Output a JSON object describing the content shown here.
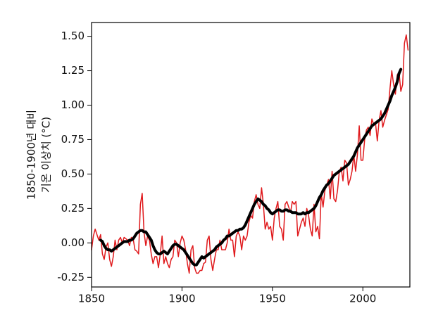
{
  "chart_data": {
    "type": "line",
    "ylabel": [
      "1850-1900년 대비",
      "기온 이상치 (°C)"
    ],
    "x": [
      1850,
      1851,
      1852,
      1853,
      1854,
      1855,
      1856,
      1857,
      1858,
      1859,
      1860,
      1861,
      1862,
      1863,
      1864,
      1865,
      1866,
      1867,
      1868,
      1869,
      1870,
      1871,
      1872,
      1873,
      1874,
      1875,
      1876,
      1877,
      1878,
      1879,
      1880,
      1881,
      1882,
      1883,
      1884,
      1885,
      1886,
      1887,
      1888,
      1889,
      1890,
      1891,
      1892,
      1893,
      1894,
      1895,
      1896,
      1897,
      1898,
      1899,
      1900,
      1901,
      1902,
      1903,
      1904,
      1905,
      1906,
      1907,
      1908,
      1909,
      1910,
      1911,
      1912,
      1913,
      1914,
      1915,
      1916,
      1917,
      1918,
      1919,
      1920,
      1921,
      1922,
      1923,
      1924,
      1925,
      1926,
      1927,
      1928,
      1929,
      1930,
      1931,
      1932,
      1933,
      1934,
      1935,
      1936,
      1937,
      1938,
      1939,
      1940,
      1941,
      1942,
      1943,
      1944,
      1945,
      1946,
      1947,
      1948,
      1949,
      1950,
      1951,
      1952,
      1953,
      1954,
      1955,
      1956,
      1957,
      1958,
      1959,
      1960,
      1961,
      1962,
      1963,
      1964,
      1965,
      1966,
      1967,
      1968,
      1969,
      1970,
      1971,
      1972,
      1973,
      1974,
      1975,
      1976,
      1977,
      1978,
      1979,
      1980,
      1981,
      1982,
      1983,
      1984,
      1985,
      1986,
      1987,
      1988,
      1989,
      1990,
      1991,
      1992,
      1993,
      1994,
      1995,
      1996,
      1997,
      1998,
      1999,
      2000,
      2001,
      2002,
      2003,
      2004,
      2005,
      2006,
      2007,
      2008,
      2009,
      2010,
      2011,
      2012,
      2013,
      2014,
      2015,
      2016,
      2017,
      2018,
      2019,
      2020,
      2021,
      2022,
      2023,
      2024,
      2025
    ],
    "series": [
      {
        "color": "#e0191c",
        "width": 1.5,
        "values": [
          -0.05,
          0.05,
          0.1,
          0.06,
          0.02,
          0.06,
          -0.08,
          -0.12,
          -0.03,
          0.0,
          -0.12,
          -0.17,
          -0.1,
          0.02,
          -0.05,
          0.02,
          0.04,
          0.0,
          0.04,
          0.03,
          0.02,
          -0.02,
          0.04,
          0.03,
          -0.05,
          -0.06,
          -0.08,
          0.28,
          0.36,
          0.08,
          -0.02,
          0.05,
          0.02,
          -0.08,
          -0.15,
          -0.1,
          -0.1,
          -0.18,
          -0.08,
          0.05,
          -0.15,
          -0.1,
          -0.15,
          -0.18,
          -0.12,
          -0.1,
          0.02,
          0.0,
          -0.1,
          0.0,
          0.05,
          0.02,
          -0.05,
          -0.15,
          -0.22,
          -0.05,
          -0.02,
          -0.18,
          -0.22,
          -0.22,
          -0.2,
          -0.2,
          -0.15,
          -0.14,
          0.02,
          0.05,
          -0.12,
          -0.2,
          -0.12,
          -0.05,
          -0.05,
          0.02,
          -0.05,
          -0.05,
          -0.05,
          0.0,
          0.1,
          0.02,
          0.02,
          -0.1,
          0.05,
          0.08,
          0.05,
          -0.05,
          0.05,
          0.02,
          0.05,
          0.15,
          0.2,
          0.18,
          0.3,
          0.35,
          0.28,
          0.25,
          0.4,
          0.28,
          0.1,
          0.15,
          0.1,
          0.12,
          0.02,
          0.18,
          0.25,
          0.3,
          0.12,
          0.1,
          0.02,
          0.28,
          0.3,
          0.26,
          0.22,
          0.3,
          0.28,
          0.3,
          0.05,
          0.1,
          0.15,
          0.18,
          0.12,
          0.25,
          0.2,
          0.1,
          0.05,
          0.28,
          0.08,
          0.12,
          0.03,
          0.36,
          0.26,
          0.38,
          0.42,
          0.46,
          0.32,
          0.52,
          0.32,
          0.3,
          0.38,
          0.52,
          0.55,
          0.45,
          0.6,
          0.58,
          0.42,
          0.46,
          0.52,
          0.64,
          0.52,
          0.64,
          0.85,
          0.6,
          0.6,
          0.75,
          0.82,
          0.84,
          0.78,
          0.9,
          0.86,
          0.87,
          0.74,
          0.89,
          0.96,
          0.84,
          0.89,
          0.93,
          0.97,
          1.12,
          1.25,
          1.15,
          1.08,
          1.22,
          1.24,
          1.1,
          1.15,
          1.45,
          1.51,
          1.4
        ]
      },
      {
        "color": "#000000",
        "width": 4,
        "values": [
          null,
          null,
          null,
          null,
          null,
          0.02,
          0.01,
          -0.02,
          -0.04,
          -0.05,
          -0.05,
          -0.06,
          -0.05,
          -0.04,
          -0.03,
          -0.02,
          -0.01,
          0.0,
          0.01,
          0.01,
          0.01,
          0.02,
          0.02,
          0.03,
          0.05,
          0.07,
          0.08,
          0.09,
          0.09,
          0.08,
          0.08,
          0.06,
          0.04,
          0.02,
          -0.02,
          -0.05,
          -0.07,
          -0.08,
          -0.08,
          -0.07,
          -0.06,
          -0.07,
          -0.08,
          -0.06,
          -0.04,
          -0.02,
          -0.01,
          -0.01,
          -0.02,
          -0.03,
          -0.04,
          -0.05,
          -0.07,
          -0.09,
          -0.11,
          -0.13,
          -0.15,
          -0.16,
          -0.16,
          -0.14,
          -0.12,
          -0.1,
          -0.11,
          -0.1,
          -0.09,
          -0.08,
          -0.07,
          -0.06,
          -0.05,
          -0.03,
          -0.02,
          -0.01,
          0.0,
          0.02,
          0.03,
          0.05,
          0.05,
          0.06,
          0.07,
          0.08,
          0.09,
          0.09,
          0.1,
          0.1,
          0.11,
          0.13,
          0.16,
          0.19,
          0.22,
          0.25,
          0.28,
          0.3,
          0.32,
          0.31,
          0.3,
          0.28,
          0.27,
          0.25,
          0.24,
          0.22,
          0.21,
          0.22,
          0.23,
          0.24,
          0.24,
          0.23,
          0.23,
          0.24,
          0.24,
          0.23,
          0.23,
          0.22,
          0.22,
          0.22,
          0.21,
          0.21,
          0.21,
          0.22,
          0.21,
          0.22,
          0.22,
          0.23,
          0.24,
          0.25,
          0.27,
          0.3,
          0.33,
          0.35,
          0.38,
          0.4,
          0.42,
          0.43,
          0.45,
          0.47,
          0.49,
          0.5,
          0.51,
          0.52,
          0.53,
          0.54,
          0.55,
          0.56,
          0.57,
          0.59,
          0.61,
          0.63,
          0.66,
          0.69,
          0.71,
          0.73,
          0.75,
          0.77,
          0.79,
          0.81,
          0.83,
          0.85,
          0.86,
          0.87,
          0.88,
          0.89,
          0.9,
          0.92,
          0.94,
          0.97,
          1.0,
          1.03,
          1.07,
          1.1,
          1.13,
          1.17,
          1.23,
          1.26,
          null,
          null,
          null,
          null
        ]
      }
    ],
    "xlim": [
      1850,
      2026
    ],
    "ylim": [
      -0.32,
      1.6
    ],
    "xticks": [
      1850,
      1900,
      1950,
      2000
    ],
    "yticks": [
      -0.25,
      {
        "value": 0,
        "label": "0.00"
      },
      0.25,
      {
        "value": 0.5,
        "label": "0.50"
      },
      0.75,
      {
        "value": 1,
        "label": "1.00"
      },
      1.25,
      {
        "value": 1.5,
        "label": "1.50"
      }
    ]
  }
}
